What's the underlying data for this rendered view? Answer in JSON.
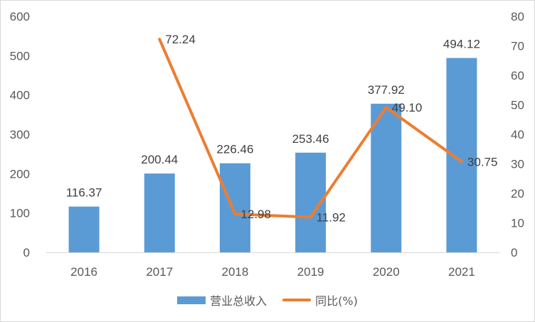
{
  "chart_data": {
    "type": "bar",
    "categories": [
      "2016",
      "2017",
      "2018",
      "2019",
      "2020",
      "2021"
    ],
    "series": [
      {
        "name": "营业总收入",
        "type": "bar",
        "axis": "left",
        "color": "#5b9bd5",
        "values": [
          116.37,
          200.44,
          226.46,
          253.46,
          377.92,
          494.12
        ],
        "labels": [
          "116.37",
          "200.44",
          "226.46",
          "253.46",
          "377.92",
          "494.12"
        ]
      },
      {
        "name": "同比(%)",
        "type": "line",
        "axis": "right",
        "color": "#ed7d31",
        "values": [
          null,
          72.24,
          12.98,
          11.92,
          49.1,
          30.75
        ],
        "labels": [
          "",
          "72.24",
          "12.98",
          "11.92",
          "49.10",
          "30.75"
        ]
      }
    ],
    "y_left": {
      "lim": [
        0,
        600
      ],
      "ticks": [
        "0",
        "100",
        "200",
        "300",
        "400",
        "500",
        "600"
      ]
    },
    "y_right": {
      "lim": [
        0,
        80
      ],
      "ticks": [
        "0",
        "10",
        "20",
        "30",
        "40",
        "50",
        "60",
        "70",
        "80"
      ]
    },
    "grid": false,
    "legend": "bottom-center"
  }
}
